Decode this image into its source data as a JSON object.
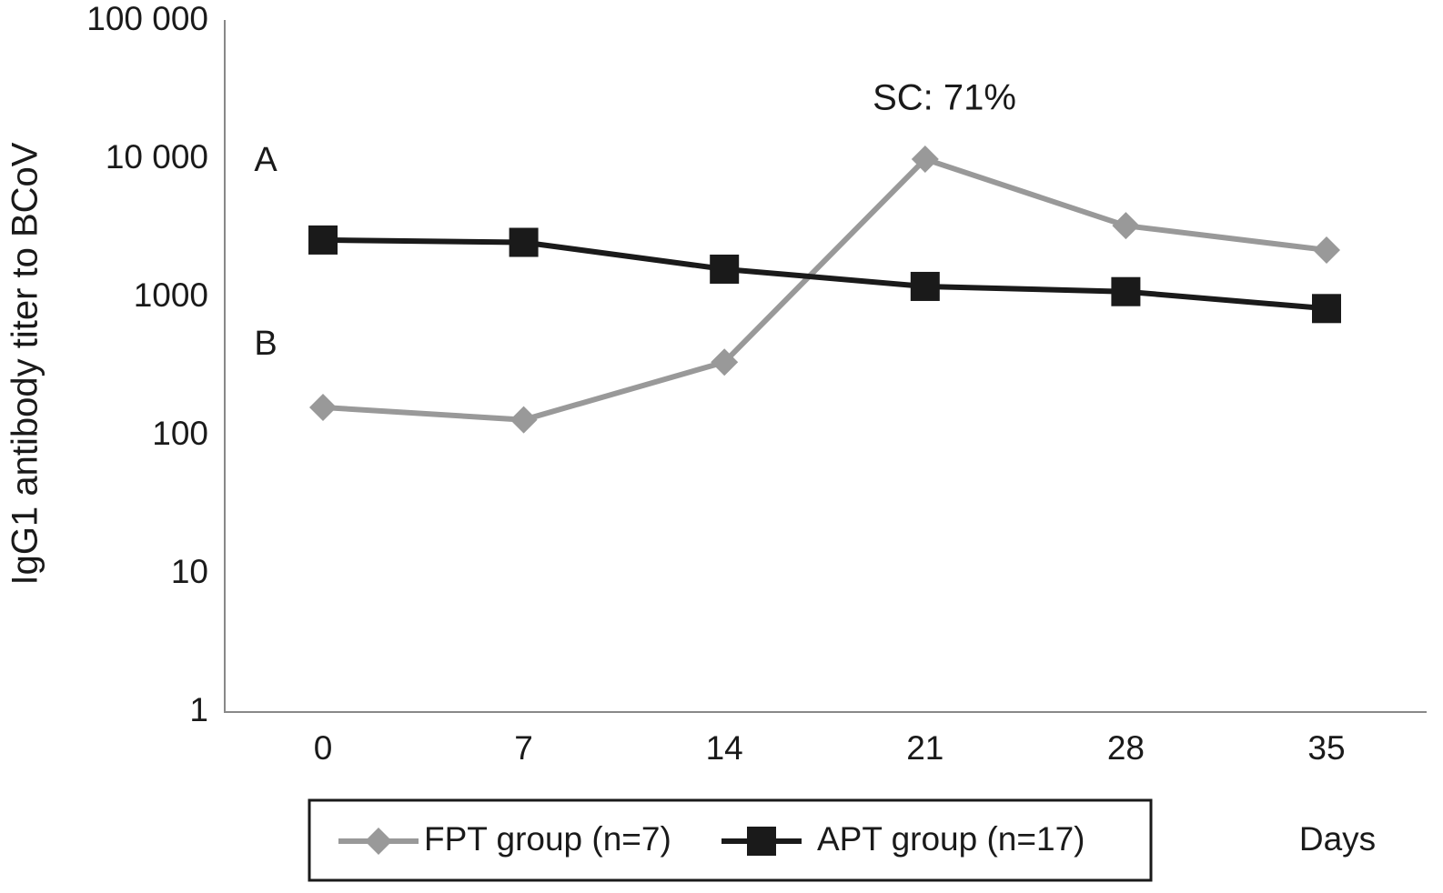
{
  "chart_data": {
    "type": "line",
    "y_label": "IgG1 antibody titer to BCoV",
    "x_label": "Days",
    "annotations": [
      "SC: 71%",
      "A",
      "B"
    ],
    "categories": [
      "0",
      "7",
      "14",
      "21",
      "28",
      "35"
    ],
    "series": [
      {
        "name": "FPT group (n=7)",
        "color": "#999999",
        "marker": "diamond",
        "values": [
          160,
          130,
          340,
          10000,
          3300,
          2200
        ]
      },
      {
        "name": "APT group (n=17)",
        "color": "#1a1a1a",
        "marker": "square",
        "values": [
          2600,
          2500,
          1600,
          1200,
          1100,
          830
        ]
      }
    ],
    "ylog": true,
    "ylim": [
      1,
      100000
    ],
    "yticks": [
      1,
      10,
      100,
      1000,
      {
        "value": 10000,
        "label": "10 000"
      },
      {
        "value": 100000,
        "label": "100 000"
      }
    ],
    "grid": false,
    "legend": "bottom"
  }
}
